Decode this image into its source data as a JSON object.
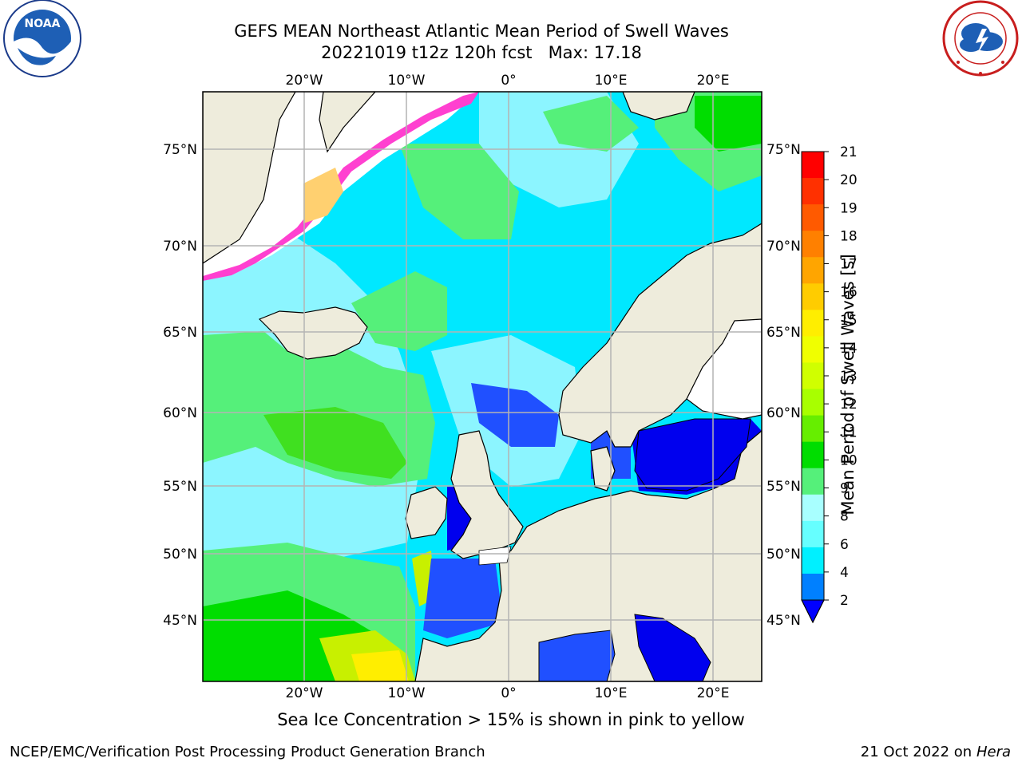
{
  "header": {
    "title_line1": "GEFS MEAN Northeast Atlantic Mean Period of Swell Waves",
    "title_line2": "20221019 t12z 120h fcst   Max: 17.18"
  },
  "logos": {
    "left": "NOAA",
    "left_ring_text": "NATIONAL OCEANIC AND ATMOSPHERIC ADMINISTRATION · U.S. DEPARTMENT OF COMMERCE",
    "right_ring_text": "NATIONAL WEATHER SERVICE"
  },
  "map": {
    "top_lon_labels": [
      "20°W",
      "10°W",
      "0°",
      "10°E",
      "20°E"
    ],
    "bottom_lon_labels": [
      "20°W",
      "10°W",
      "0°",
      "10°E",
      "20°E"
    ],
    "left_lat_labels": [
      "75°N",
      "70°N",
      "65°N",
      "60°N",
      "55°N",
      "50°N",
      "45°N"
    ],
    "right_lat_labels": [
      "75°N",
      "70°N",
      "65°N",
      "60°N",
      "55°N",
      "50°N",
      "45°N"
    ],
    "colors": {
      "land": "#eeecdc",
      "ocean_cyan": "#00e8ff",
      "ocean_light": "#8cf5ff",
      "green_9": "#55f07a",
      "green_10": "#00dd00",
      "green_11": "#40e020",
      "yellow_12": "#c8f000",
      "blue_2": "#0000ee",
      "grid": "#b4b4b4"
    }
  },
  "colorbar": {
    "label": "Mean Period of Swell Waves [s]",
    "ticks": [
      "21",
      "20",
      "19",
      "18",
      "17",
      "16",
      "15",
      "14",
      "13",
      "12",
      "11",
      "10",
      "9",
      "8",
      "6",
      "4",
      "2"
    ],
    "colors": [
      "#ff0000",
      "#ff3000",
      "#ff5a00",
      "#ff8000",
      "#ffa500",
      "#ffcc00",
      "#ffee00",
      "#f0ff00",
      "#d0ff00",
      "#a8ff00",
      "#66ee00",
      "#00dd00",
      "#55f07a",
      "#a8ffff",
      "#66ffff",
      "#00f0ff",
      "#0080ff"
    ],
    "extend_color": "#0000ff"
  },
  "footer": {
    "note": "Sea Ice Concentration > 15% is shown in pink to yellow",
    "left": "NCEP/EMC/Verification Post Processing Product Generation Branch",
    "right_date": "21 Oct 2022 on ",
    "right_host": "Hera"
  }
}
